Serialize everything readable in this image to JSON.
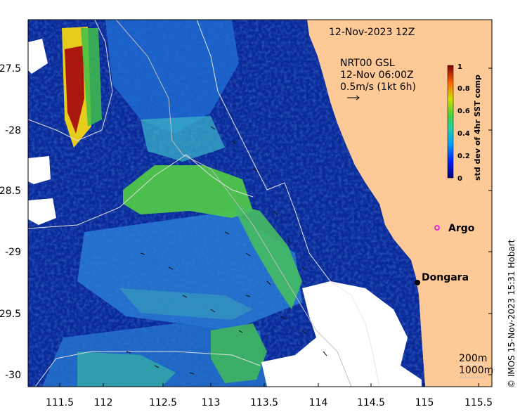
{
  "date_title": "12-Nov-2023 12Z",
  "current_product": "NRT00 GSL",
  "current_time": "12-Nov 06:00Z",
  "vector_scale": "0.5m/s (1kt 6h)",
  "places": {
    "argo": "Argo",
    "dongara": "Dongara"
  },
  "colorbar": {
    "title": "std dev of 4hr SST comp",
    "ticks": [
      "0",
      "0.2",
      "0.4",
      "0.6",
      "0.8",
      "1"
    ]
  },
  "legend": {
    "isobath_200": "200m",
    "isobath_1000": "1000m"
  },
  "credit": "© IMOS 15-Nov-2023 15:31 Hobart",
  "axes": {
    "x_ticks": [
      "111.5",
      "112",
      "112.5",
      "113",
      "113.5",
      "114",
      "114.5",
      "115",
      "115.5"
    ],
    "y_ticks": [
      "-27.5",
      "-28",
      "-28.5",
      "-29",
      "-29.5",
      "-30"
    ]
  },
  "colors": {
    "land": "#fdc996",
    "ocean_low": "#08238f",
    "ocean_mid": "#2a74c8",
    "green": "#52c94a",
    "high": "#a61b0e",
    "nodata": "#ffffff",
    "argo_marker": "#e000e0"
  }
}
